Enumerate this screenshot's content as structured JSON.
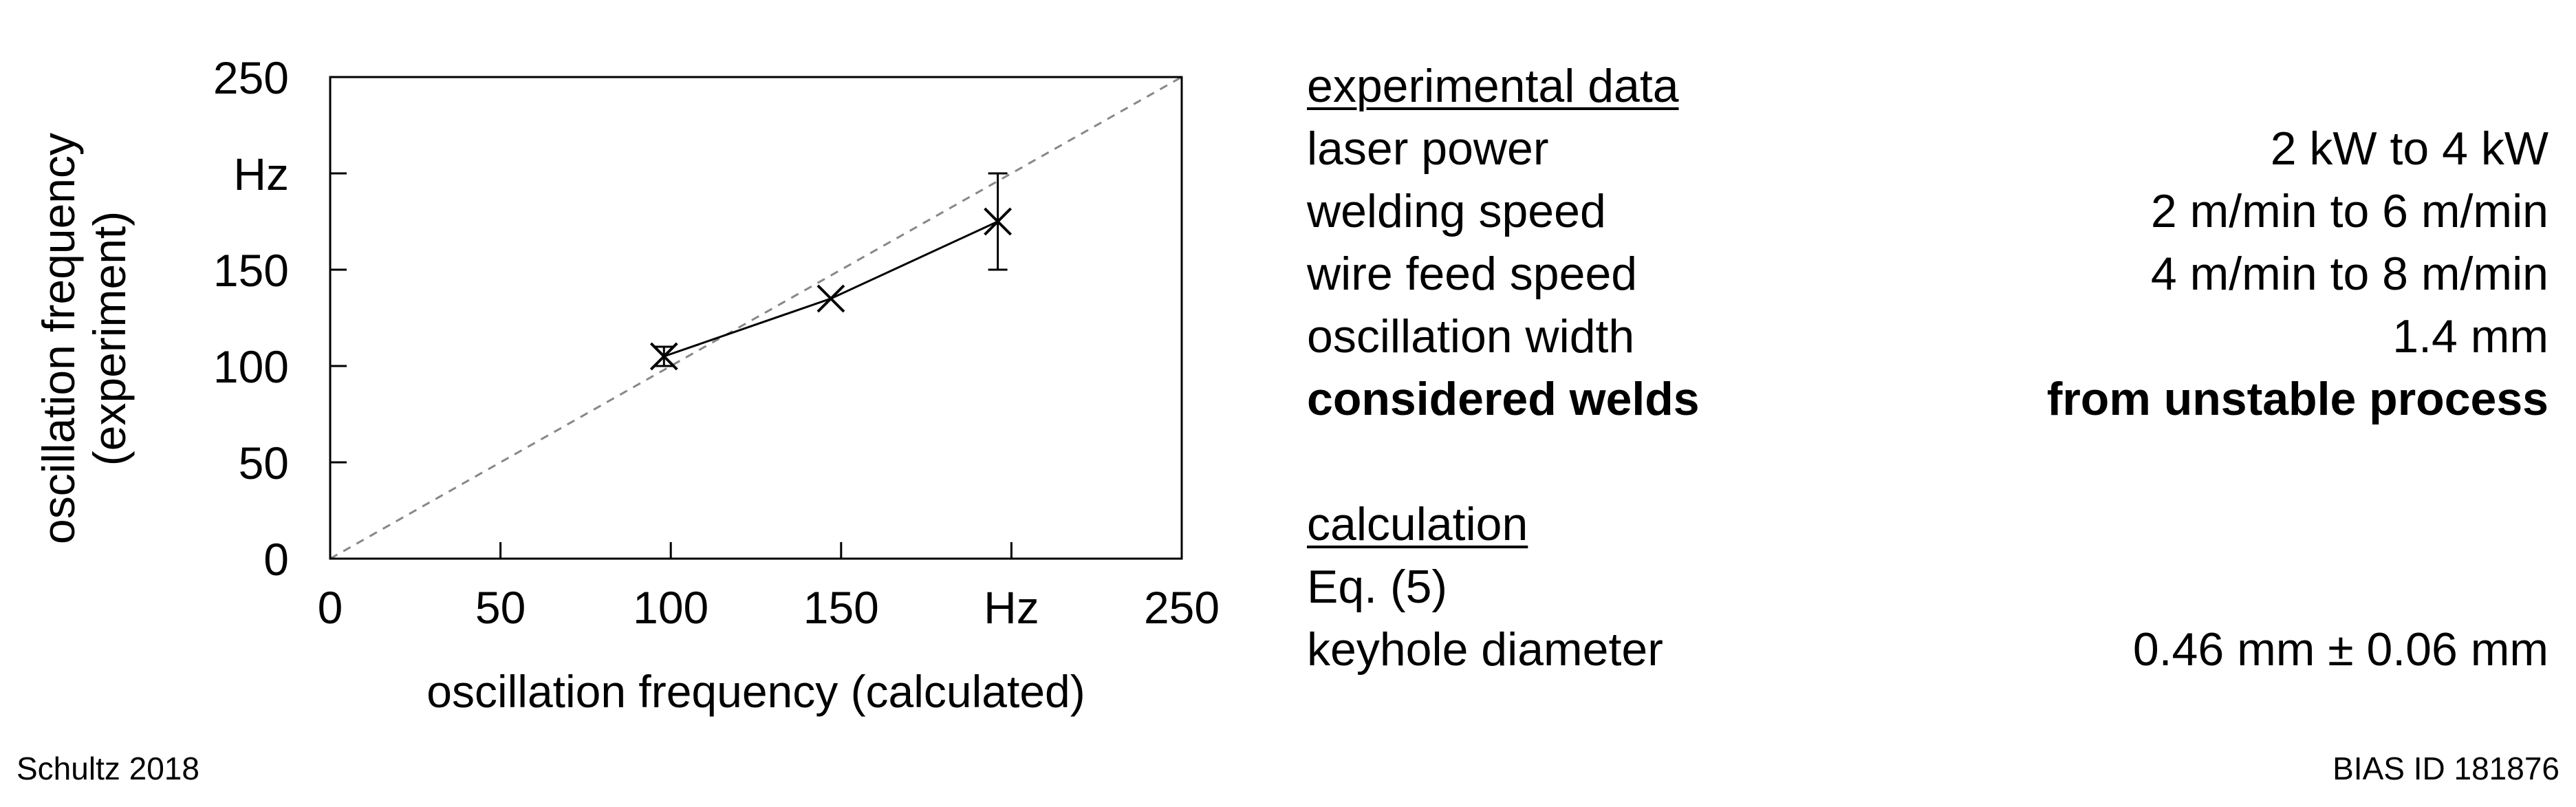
{
  "chart_data": {
    "type": "scatter",
    "xlabel": "oscillation frequency (calculated)",
    "ylabel": [
      "oscillation frequency",
      "(experiment)"
    ],
    "xlim": [
      0,
      250
    ],
    "ylim": [
      0,
      250
    ],
    "x_ticks": [
      {
        "value": 0,
        "label": "0"
      },
      {
        "value": 50,
        "label": "50"
      },
      {
        "value": 100,
        "label": "100"
      },
      {
        "value": 150,
        "label": "150"
      },
      {
        "value": 200,
        "label": "Hz"
      },
      {
        "value": 250,
        "label": "250"
      }
    ],
    "y_ticks": [
      {
        "value": 0,
        "label": "0"
      },
      {
        "value": 50,
        "label": "50"
      },
      {
        "value": 100,
        "label": "100"
      },
      {
        "value": 150,
        "label": "150"
      },
      {
        "value": 200,
        "label": "Hz"
      },
      {
        "value": 250,
        "label": "250"
      }
    ],
    "points": [
      {
        "x": 98,
        "y": 105,
        "y_err_low": 100,
        "y_err_high": 110
      },
      {
        "x": 147,
        "y": 135
      },
      {
        "x": 196,
        "y": 175,
        "y_err_low": 150,
        "y_err_high": 200
      }
    ],
    "connect_points": true,
    "reference_line": {
      "from": [
        0,
        0
      ],
      "to": [
        250,
        250
      ],
      "style": "dashed"
    },
    "grid": false,
    "marker": "x"
  },
  "panel": {
    "experimental_title": "experimental data",
    "rows": [
      {
        "label": "laser power",
        "value": "2 kW to 4 kW"
      },
      {
        "label": "welding speed",
        "value": "2 m/min to 6 m/min"
      },
      {
        "label": "wire feed speed",
        "value": "4 m/min to 8 m/min"
      },
      {
        "label": "oscillation width",
        "value": "1.4 mm"
      },
      {
        "label": "considered welds",
        "value": "from unstable process",
        "bold": true
      }
    ],
    "calculation_title": "calculation",
    "calc_rows": [
      {
        "label": "Eq. (5)",
        "value": ""
      },
      {
        "label": "keyhole diameter",
        "value": "0.46 mm ± 0.06 mm"
      }
    ]
  },
  "footer": {
    "left": "Schultz 2018",
    "right": "BIAS ID 181876"
  }
}
